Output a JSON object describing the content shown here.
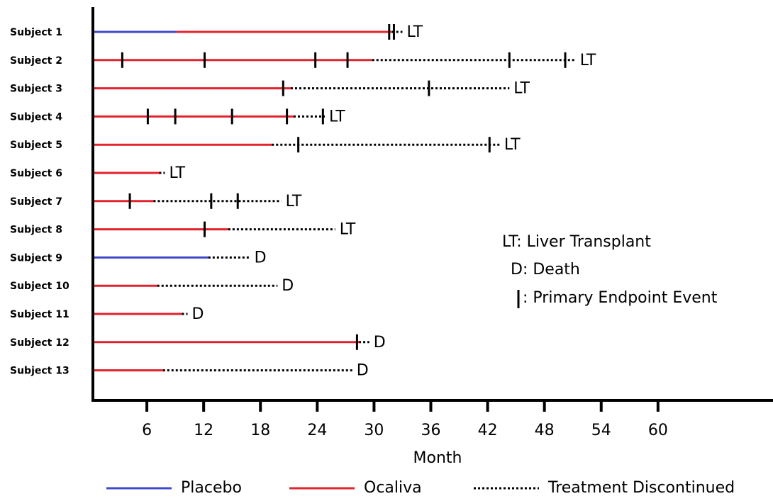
{
  "chart_data": {
    "type": "swimmer",
    "categories": [
      "Subject 1",
      "Subject 2",
      "Subject 3",
      "Subject 4",
      "Subject 5",
      "Subject 6",
      "Subject 7",
      "Subject 8",
      "Subject 9",
      "Subject 10",
      "Subject 11",
      "Subject 12",
      "Subject 13"
    ],
    "series": [
      {
        "name": "Placebo",
        "color": "#3f48cc",
        "style": "solid",
        "values": [
          9.1,
          null,
          null,
          null,
          null,
          null,
          null,
          null,
          12.5,
          null,
          null,
          null,
          null
        ]
      },
      {
        "name": "Ocaliva",
        "color": "#e3222c",
        "style": "solid",
        "values": [
          22.8,
          29.8,
          21.2,
          21.5,
          19.2,
          7.3,
          6.7,
          14.6,
          null,
          7.1,
          9.7,
          28.4,
          7.7
        ]
      },
      {
        "name": "Treatment Discontinued",
        "color": "#000000",
        "style": "dotted",
        "values": [
          1.1,
          21.5,
          23.1,
          3.3,
          24.1,
          0.6,
          13.5,
          11.3,
          4.4,
          12.7,
          0.6,
          1.1,
          20
        ]
      }
    ],
    "events": [
      [
        31.6,
        32.1
      ],
      [
        3.4,
        12.1,
        23.8,
        27.2,
        44.3,
        50.2
      ],
      [
        20.4,
        35.8
      ],
      [
        6.1,
        9,
        15,
        20.8,
        24.6
      ],
      [
        22,
        42.2
      ],
      [],
      [
        4.2,
        12.8,
        15.6
      ],
      [
        12.1
      ],
      [],
      [],
      [],
      [
        28.2
      ],
      []
    ],
    "outcomes": [
      "LT",
      "LT",
      "LT",
      "LT",
      "LT",
      "LT",
      "LT",
      "LT",
      "D",
      "D",
      "D",
      "D",
      "D"
    ],
    "annotations": [
      "LT: Liver Transplant",
      "D: Death",
      ": Primary Endpoint Event"
    ],
    "xlabel": "Month",
    "xlim": [
      0,
      72
    ],
    "xticks": [
      6,
      12,
      18,
      24,
      30,
      36,
      42,
      48,
      54,
      60
    ]
  }
}
